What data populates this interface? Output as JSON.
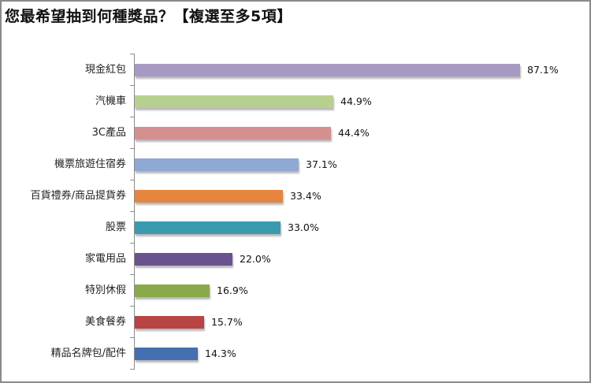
{
  "chart_data": {
    "type": "bar",
    "orientation": "horizontal",
    "title": "您最希望抽到何種獎品？【複選至多5項】",
    "xlabel": "",
    "ylabel": "",
    "categories": [
      "現金紅包",
      "汽機車",
      "3C產品",
      "機票旅遊住宿券",
      "百貨禮券/商品提貨券",
      "股票",
      "家電用品",
      "特別休假",
      "美食餐券",
      "精品名牌包/配件"
    ],
    "values": [
      87.1,
      44.9,
      44.4,
      37.1,
      33.4,
      33.0,
      22.0,
      16.9,
      15.7,
      14.3
    ],
    "labels": [
      "87.1%",
      "44.9%",
      "44.4%",
      "37.1%",
      "33.4%",
      "33.0%",
      "22.0%",
      "16.9%",
      "15.7%",
      "14.3%"
    ],
    "colors": [
      "#a899c3",
      "#b8d08f",
      "#d48f8f",
      "#8fa8d4",
      "#e6853f",
      "#3a9ab0",
      "#6a5290",
      "#8aa94a",
      "#b84444",
      "#4470b0"
    ],
    "unit": "%",
    "grid": false,
    "legend": "none",
    "xlim": [
      0,
      100
    ]
  }
}
